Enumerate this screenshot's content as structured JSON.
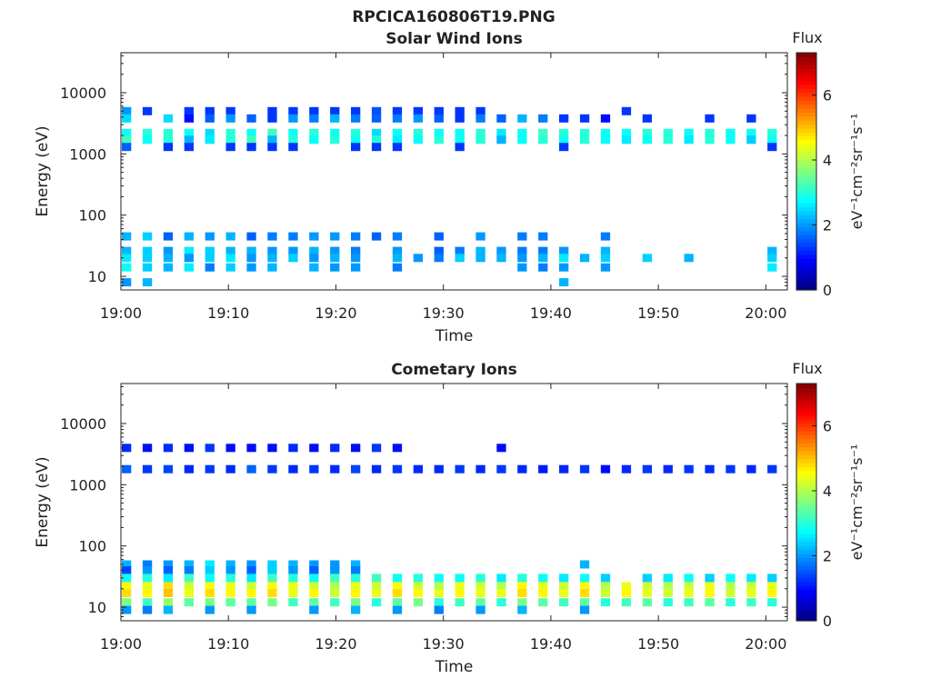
{
  "page_title": "RPCICA160806T19.PNG",
  "colors": {
    "background": "#ffffff",
    "axis": "#222222",
    "colormap": [
      "#00007f",
      "#0000ff",
      "#007fff",
      "#00ffff",
      "#7fff7f",
      "#ffff00",
      "#ff7f00",
      "#ff0000",
      "#7f0000"
    ]
  },
  "chart_data": [
    {
      "type": "heatmap",
      "title": "Solar Wind Ions",
      "xlabel": "Time",
      "ylabel": "Energy (eV)",
      "yscale": "log",
      "ylim": [
        6,
        45000
      ],
      "xlim": [
        "19:00",
        "20:02"
      ],
      "xticks": [
        "19:00",
        "19:10",
        "19:20",
        "19:30",
        "19:40",
        "19:50",
        "20:00"
      ],
      "yticks": [
        "10",
        "100",
        "1000",
        "10000"
      ],
      "colorbar": {
        "label": "Flux",
        "units": "eV⁻¹cm⁻²sr⁻¹s⁻¹",
        "range": [
          0,
          7.3
        ],
        "ticks": [
          "0",
          "2",
          "4",
          "6"
        ]
      },
      "grid": false,
      "bands": [
        {
          "energy": 5000,
          "values": [
            2.0,
            1.3,
            0,
            1.3,
            1.3,
            1.3,
            0,
            1.3,
            1.3,
            1.3,
            1.3,
            1.3,
            1.5,
            1.3,
            1.3,
            1.3,
            1.3,
            1.3,
            0,
            0,
            0,
            0,
            0,
            0,
            1.3,
            0,
            0,
            0,
            0,
            0,
            0,
            0
          ]
        },
        {
          "energy": 3800,
          "values": [
            2.5,
            0,
            2.5,
            1.0,
            1.6,
            2.0,
            1.6,
            1.3,
            2.0,
            1.8,
            2.2,
            1.8,
            1.6,
            1.8,
            2.0,
            1.6,
            1.3,
            1.8,
            1.6,
            2.2,
            1.8,
            1.3,
            1.3,
            1.0,
            0,
            1.3,
            0,
            0,
            1.3,
            0,
            1.3,
            0
          ]
        },
        {
          "energy": 2200,
          "values": [
            2.8,
            3.0,
            3.0,
            2.8,
            2.5,
            3.0,
            2.8,
            3.2,
            2.8,
            3.0,
            2.8,
            3.0,
            2.5,
            2.8,
            3.0,
            2.8,
            2.8,
            3.0,
            2.6,
            2.8,
            3.2,
            3.0,
            3.0,
            2.8,
            2.8,
            3.0,
            3.0,
            2.8,
            3.0,
            2.8,
            2.8,
            3.0
          ]
        },
        {
          "energy": 1700,
          "values": [
            3.2,
            2.8,
            3.0,
            2.2,
            2.6,
            3.0,
            3.2,
            2.2,
            3.0,
            2.8,
            3.0,
            2.8,
            3.0,
            2.6,
            2.8,
            3.0,
            2.8,
            3.0,
            2.2,
            2.8,
            3.0,
            2.8,
            3.0,
            2.8,
            2.6,
            2.8,
            3.0,
            2.6,
            3.0,
            2.8,
            2.4,
            2.8
          ]
        },
        {
          "energy": 1300,
          "values": [
            1.6,
            0,
            1.3,
            1.3,
            0,
            1.3,
            1.3,
            1.3,
            1.3,
            0,
            0,
            1.3,
            1.3,
            1.3,
            0,
            0,
            1.3,
            0,
            0,
            0,
            0,
            1.3,
            0,
            0,
            0,
            0,
            0,
            0,
            0,
            0,
            0,
            1.3
          ]
        },
        {
          "energy": 45,
          "values": [
            2.2,
            2.4,
            1.6,
            2.2,
            2.0,
            2.2,
            1.6,
            1.8,
            1.8,
            2.0,
            2.0,
            1.8,
            1.6,
            1.8,
            0,
            1.6,
            0,
            2.0,
            0,
            1.8,
            1.8,
            0,
            0,
            1.8,
            0,
            0,
            0,
            0,
            0,
            0,
            0,
            0
          ]
        },
        {
          "energy": 26,
          "values": [
            2.2,
            2.4,
            2.0,
            2.6,
            2.4,
            2.2,
            2.2,
            2.0,
            2.0,
            2.2,
            2.0,
            1.8,
            0,
            2.0,
            0,
            1.6,
            1.8,
            2.2,
            2.0,
            1.8,
            1.8,
            2.0,
            0,
            2.2,
            0,
            0,
            0,
            0,
            0,
            0,
            0,
            2.2
          ]
        },
        {
          "energy": 20,
          "values": [
            2.6,
            2.4,
            2.2,
            2.0,
            2.4,
            2.6,
            2.0,
            2.2,
            2.4,
            2.0,
            2.2,
            2.0,
            0,
            2.2,
            2.0,
            1.8,
            2.4,
            2.2,
            2.2,
            2.0,
            2.2,
            2.6,
            2.2,
            2.4,
            0,
            2.4,
            0,
            2.2,
            0,
            0,
            0,
            2.4
          ]
        },
        {
          "energy": 14,
          "values": [
            2.8,
            2.4,
            2.2,
            2.6,
            1.8,
            2.4,
            2.0,
            2.2,
            0,
            2.2,
            2.0,
            2.0,
            0,
            1.8,
            0,
            0,
            0,
            0,
            0,
            2.0,
            1.8,
            2.0,
            0,
            2.0,
            0,
            0,
            0,
            0,
            0,
            0,
            0,
            2.6
          ]
        },
        {
          "energy": 8,
          "values": [
            2.0,
            2.2,
            0,
            0,
            0,
            0,
            0,
            0,
            0,
            0,
            0,
            0,
            0,
            0,
            0,
            0,
            0,
            0,
            0,
            0,
            0,
            2.2,
            0,
            0,
            0,
            0,
            0,
            0,
            0,
            0,
            0,
            0
          ]
        }
      ]
    },
    {
      "type": "heatmap",
      "title": "Cometary Ions",
      "xlabel": "Time",
      "ylabel": "Energy (eV)",
      "yscale": "log",
      "ylim": [
        6,
        45000
      ],
      "xlim": [
        "19:00",
        "20:02"
      ],
      "xticks": [
        "19:00",
        "19:10",
        "19:20",
        "19:30",
        "19:40",
        "19:50",
        "20:00"
      ],
      "yticks": [
        "10",
        "100",
        "1000",
        "10000"
      ],
      "colorbar": {
        "label": "Flux",
        "units": "eV⁻¹cm⁻²sr⁻¹s⁻¹",
        "range": [
          0,
          7.3
        ],
        "ticks": [
          "0",
          "2",
          "4",
          "6"
        ]
      },
      "grid": false,
      "bands": [
        {
          "energy": 4000,
          "values": [
            1.2,
            1.0,
            1.2,
            1.0,
            1.3,
            1.0,
            1.0,
            1.0,
            1.2,
            1.0,
            1.2,
            1.0,
            1.3,
            1.0,
            0,
            0,
            0,
            0,
            1.0,
            0,
            0,
            0,
            0,
            0,
            0,
            0,
            0,
            0,
            0,
            0,
            0,
            0
          ]
        },
        {
          "energy": 1800,
          "values": [
            1.6,
            1.3,
            1.4,
            1.2,
            1.3,
            1.2,
            1.6,
            1.3,
            1.2,
            1.3,
            1.2,
            1.4,
            1.2,
            1.3,
            1.2,
            1.2,
            1.3,
            1.2,
            1.3,
            1.2,
            1.1,
            1.2,
            1.3,
            1.0,
            1.2,
            1.3,
            1.2,
            1.3,
            1.2,
            1.3,
            1.2,
            1.3
          ]
        },
        {
          "energy": 50,
          "values": [
            2.2,
            1.8,
            2.0,
            2.2,
            2.6,
            2.2,
            2.0,
            2.4,
            2.2,
            2.0,
            2.0,
            2.2,
            0,
            0,
            0,
            0,
            0,
            0,
            0,
            0,
            0,
            0,
            2.2,
            0,
            0,
            0,
            0,
            0,
            0,
            0,
            0,
            0
          ]
        },
        {
          "energy": 40,
          "values": [
            1.4,
            2.0,
            1.6,
            1.8,
            2.4,
            2.0,
            1.6,
            2.4,
            2.0,
            1.6,
            2.0,
            1.8,
            0,
            0,
            0,
            0,
            0,
            0,
            0,
            0,
            0,
            0,
            0,
            0,
            0,
            0,
            0,
            0,
            0,
            0,
            0,
            0
          ]
        },
        {
          "energy": 30,
          "values": [
            2.8,
            3.0,
            2.6,
            3.2,
            2.8,
            3.0,
            2.6,
            3.2,
            3.0,
            2.8,
            3.2,
            3.0,
            3.2,
            2.8,
            3.0,
            2.8,
            2.8,
            3.0,
            2.6,
            3.0,
            2.8,
            2.6,
            2.8,
            2.4,
            0,
            2.4,
            2.6,
            2.8,
            2.4,
            2.8,
            2.6,
            2.4
          ]
        },
        {
          "energy": 22,
          "values": [
            4.6,
            4.4,
            4.8,
            4.2,
            4.6,
            4.4,
            4.2,
            4.6,
            4.4,
            4.2,
            4.0,
            4.4,
            4.2,
            4.6,
            4.2,
            4.0,
            4.4,
            4.2,
            4.0,
            4.6,
            4.4,
            4.2,
            4.6,
            4.0,
            4.4,
            4.2,
            4.0,
            4.2,
            4.4,
            4.0,
            4.2,
            4.4
          ]
        },
        {
          "energy": 17,
          "values": [
            4.8,
            4.6,
            5.0,
            4.4,
            4.8,
            4.6,
            4.6,
            4.8,
            4.4,
            4.6,
            4.2,
            4.6,
            4.4,
            4.8,
            4.6,
            4.4,
            4.6,
            4.4,
            4.4,
            4.8,
            4.6,
            4.4,
            4.8,
            4.2,
            4.6,
            4.4,
            4.2,
            4.4,
            4.6,
            4.2,
            4.4,
            4.6
          ]
        },
        {
          "energy": 12,
          "values": [
            3.6,
            3.2,
            3.8,
            3.4,
            3.6,
            3.4,
            3.4,
            3.6,
            3.2,
            3.4,
            3.2,
            3.6,
            3.0,
            3.4,
            3.6,
            3.0,
            3.2,
            3.4,
            3.0,
            3.6,
            3.4,
            3.2,
            3.4,
            3.0,
            3.2,
            3.4,
            3.0,
            3.2,
            3.4,
            3.0,
            3.2,
            3.0
          ]
        },
        {
          "energy": 9,
          "values": [
            2.0,
            1.8,
            2.2,
            0,
            2.0,
            0,
            2.0,
            0,
            0,
            2.0,
            0,
            2.2,
            0,
            2.0,
            0,
            1.8,
            0,
            2.0,
            0,
            2.2,
            0,
            0,
            2.0,
            0,
            0,
            0,
            0,
            0,
            0,
            0,
            0,
            0
          ]
        }
      ]
    }
  ]
}
